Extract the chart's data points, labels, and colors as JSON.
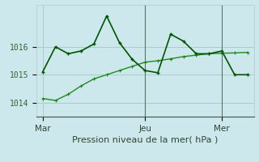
{
  "bg_color": "#cce8ec",
  "grid_color": "#aacccc",
  "line1_color": "#005500",
  "line2_color": "#228822",
  "title": "Pression niveau de la mer( hPa )",
  "x_ticks_labels": [
    "Mar",
    "Jeu",
    "Mer"
  ],
  "x_ticks_pos": [
    0,
    8,
    14
  ],
  "ylim": [
    1013.5,
    1017.5
  ],
  "yticks": [
    1014,
    1015,
    1016
  ],
  "line1_x": [
    0,
    1,
    2,
    3,
    4,
    5,
    6,
    7,
    8,
    9,
    10,
    11,
    12,
    13,
    14,
    15,
    16
  ],
  "line1_y": [
    1015.1,
    1016.0,
    1015.75,
    1015.85,
    1016.1,
    1017.1,
    1016.15,
    1015.55,
    1015.15,
    1015.07,
    1016.45,
    1016.2,
    1015.75,
    1015.75,
    1015.85,
    1015.0,
    1015.0
  ],
  "line2_x": [
    0,
    1,
    2,
    3,
    4,
    5,
    6,
    7,
    8,
    9,
    10,
    11,
    12,
    13,
    14,
    15,
    16
  ],
  "line2_y": [
    1014.15,
    1014.08,
    1014.3,
    1014.6,
    1014.85,
    1015.0,
    1015.15,
    1015.3,
    1015.45,
    1015.5,
    1015.57,
    1015.65,
    1015.7,
    1015.75,
    1015.77,
    1015.78,
    1015.8
  ],
  "vline_x": 8,
  "vline2_x": 14,
  "xlim": [
    -0.5,
    16.5
  ]
}
